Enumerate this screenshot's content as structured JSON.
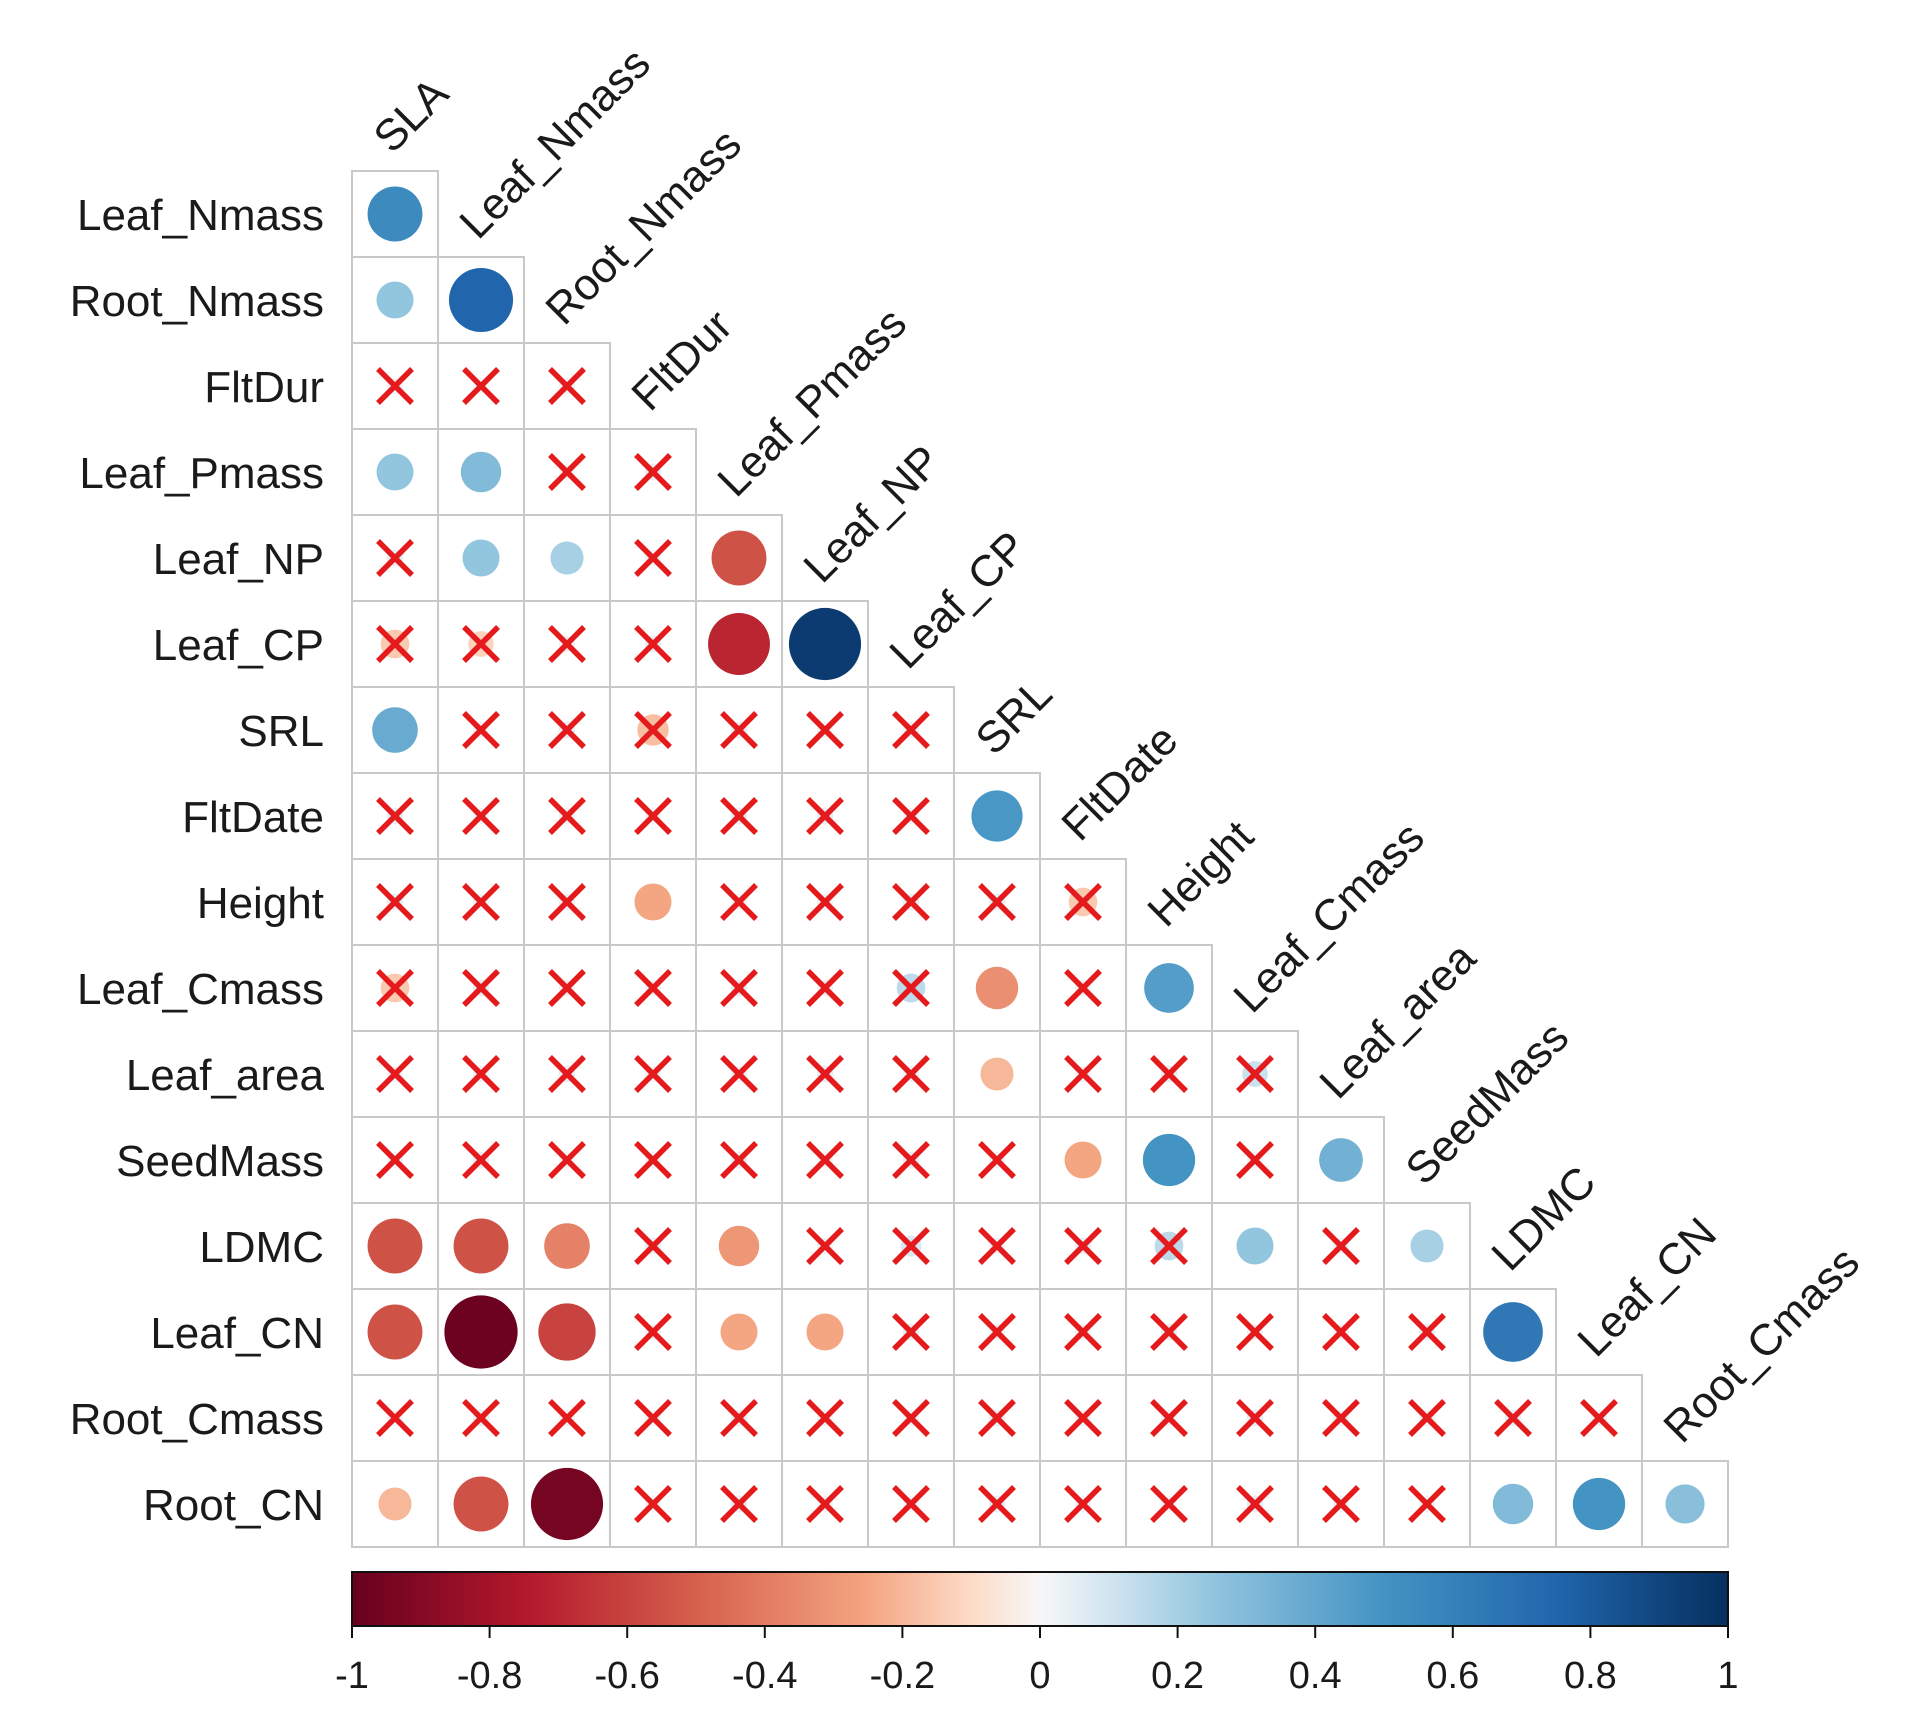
{
  "chart_data": {
    "type": "heatmap",
    "subtype": "correlation-matrix-lower-triangle",
    "title": "",
    "value_range": [
      -1,
      1
    ],
    "colors": {
      "negative_end": "#67001F",
      "neutral": "#F7F7F7",
      "positive_end": "#053061",
      "cross": "#E41A1C",
      "grid": "#C8C8C8"
    },
    "nonsignificant_marker": "cross",
    "columns": [
      "SLA",
      "Leaf_Nmass",
      "Root_Nmass",
      "FltDur",
      "Leaf_Pmass",
      "Leaf_NP",
      "Leaf_CP",
      "SRL",
      "FltDate",
      "Height",
      "Leaf_Cmass",
      "Leaf_area",
      "SeedMass",
      "LDMC",
      "Leaf_CN",
      "Root_Cmass"
    ],
    "rows": [
      "Leaf_Nmass",
      "Root_Nmass",
      "FltDur",
      "Leaf_Pmass",
      "Leaf_NP",
      "Leaf_CP",
      "SRL",
      "FltDate",
      "Height",
      "Leaf_Cmass",
      "Leaf_area",
      "SeedMass",
      "LDMC",
      "Leaf_CN",
      "Root_Cmass",
      "Root_CN"
    ],
    "values": [
      [
        0.55
      ],
      [
        0.25,
        0.75
      ],
      [
        0.02,
        0.0,
        0.03
      ],
      [
        0.25,
        0.3,
        0.02,
        0.05
      ],
      [
        0.05,
        0.25,
        0.2,
        0.02,
        -0.55
      ],
      [
        -0.15,
        -0.12,
        0.03,
        0.05,
        -0.7,
        0.95
      ],
      [
        0.38,
        0.02,
        0.05,
        -0.18,
        0.05,
        0.02,
        0.03
      ],
      [
        0.05,
        0.03,
        0.04,
        0.02,
        0.05,
        0.05,
        0.03,
        0.48
      ],
      [
        0.05,
        0.03,
        0.04,
        -0.25,
        0.02,
        0.03,
        0.05,
        0.05,
        -0.15
      ],
      [
        -0.15,
        0.05,
        0.03,
        0.02,
        0.05,
        0.03,
        0.15,
        -0.33,
        0.03,
        0.45
      ],
      [
        0.02,
        0.03,
        0.05,
        0.02,
        0.03,
        0.05,
        0.03,
        -0.2,
        0.02,
        0.05,
        0.12
      ],
      [
        0.03,
        0.05,
        0.02,
        0.03,
        0.05,
        0.02,
        0.05,
        0.03,
        -0.25,
        0.5,
        0.03,
        0.35
      ],
      [
        -0.55,
        -0.55,
        -0.38,
        0.05,
        -0.3,
        0.03,
        0.08,
        0.02,
        0.05,
        0.15,
        0.25,
        0.03,
        0.2
      ],
      [
        -0.55,
        -0.98,
        -0.6,
        0.02,
        -0.25,
        -0.25,
        0.05,
        0.03,
        0.02,
        0.05,
        0.03,
        0.02,
        0.05,
        0.65
      ],
      [
        0.02,
        0.05,
        0.03,
        0.02,
        0.05,
        0.03,
        0.02,
        0.05,
        0.03,
        0.02,
        0.05,
        0.03,
        0.02,
        0.05,
        0.03
      ],
      [
        -0.2,
        -0.55,
        -0.95,
        0.02,
        0.05,
        0.03,
        0.02,
        0.05,
        0.03,
        0.02,
        0.05,
        0.03,
        0.02,
        0.3,
        0.5,
        0.28
      ]
    ],
    "nonsignificant": [
      [
        false
      ],
      [
        false,
        false
      ],
      [
        true,
        true,
        true
      ],
      [
        false,
        false,
        true,
        true
      ],
      [
        true,
        false,
        false,
        true,
        false
      ],
      [
        true,
        true,
        true,
        true,
        false,
        false
      ],
      [
        false,
        true,
        true,
        true,
        true,
        true,
        true
      ],
      [
        true,
        true,
        true,
        true,
        true,
        true,
        true,
        false
      ],
      [
        true,
        true,
        true,
        false,
        true,
        true,
        true,
        true,
        true
      ],
      [
        true,
        true,
        true,
        true,
        true,
        true,
        true,
        false,
        true,
        false
      ],
      [
        true,
        true,
        true,
        true,
        true,
        true,
        true,
        false,
        true,
        true,
        true
      ],
      [
        true,
        true,
        true,
        true,
        true,
        true,
        true,
        true,
        false,
        false,
        true,
        false
      ],
      [
        false,
        false,
        false,
        true,
        false,
        true,
        true,
        true,
        true,
        true,
        false,
        true,
        false
      ],
      [
        false,
        false,
        false,
        true,
        false,
        false,
        true,
        true,
        true,
        true,
        true,
        true,
        true,
        false
      ],
      [
        true,
        true,
        true,
        true,
        true,
        true,
        true,
        true,
        true,
        true,
        true,
        true,
        true,
        true,
        true
      ],
      [
        false,
        false,
        false,
        true,
        true,
        true,
        true,
        true,
        true,
        true,
        true,
        true,
        true,
        false,
        false,
        false
      ]
    ],
    "colorbar": {
      "ticks": [
        -1,
        -0.8,
        -0.6,
        -0.4,
        -0.2,
        0,
        0.2,
        0.4,
        0.6,
        0.8,
        1
      ],
      "tick_labels": [
        "-1",
        "-0.8",
        "-0.6",
        "-0.4",
        "-0.2",
        "0",
        "0.2",
        "0.4",
        "0.6",
        "0.8",
        "1"
      ],
      "placement": "bottom"
    }
  }
}
